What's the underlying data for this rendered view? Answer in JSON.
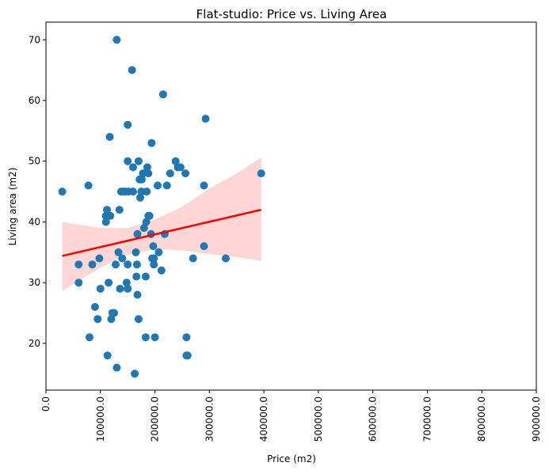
{
  "chart_data": {
    "type": "scatter",
    "title": "Flat-studio: Price vs. Living Area",
    "xlabel": "Price (m2)",
    "ylabel": "Living area (m2)",
    "xlim": [
      0,
      900000
    ],
    "ylim": [
      12.3,
      72.9
    ],
    "xticks": [
      0,
      100000,
      200000,
      300000,
      400000,
      500000,
      600000,
      700000,
      800000,
      900000
    ],
    "xtick_labels": [
      "0.0",
      "100000.0",
      "200000.0",
      "300000.0",
      "400000.0",
      "500000.0",
      "600000.0",
      "700000.0",
      "800000.0",
      "900000.0"
    ],
    "yticks": [
      20,
      30,
      40,
      50,
      60,
      70
    ],
    "ytick_labels": [
      "20",
      "30",
      "40",
      "50",
      "60",
      "70"
    ],
    "grid": false,
    "point_color": "#1f77b4",
    "line_color": "#ff0000",
    "band_color": "#ffcccc",
    "points": [
      [
        30000,
        45
      ],
      [
        60000,
        33
      ],
      [
        60000,
        30
      ],
      [
        78000,
        46
      ],
      [
        80000,
        21
      ],
      [
        85000,
        33
      ],
      [
        90000,
        26
      ],
      [
        95000,
        24
      ],
      [
        98000,
        34
      ],
      [
        100000,
        29
      ],
      [
        110000,
        40
      ],
      [
        110000,
        41
      ],
      [
        112000,
        42
      ],
      [
        113000,
        18
      ],
      [
        115000,
        30
      ],
      [
        117000,
        54
      ],
      [
        118000,
        41
      ],
      [
        120000,
        24
      ],
      [
        122000,
        25
      ],
      [
        125000,
        25
      ],
      [
        128000,
        33
      ],
      [
        130000,
        16
      ],
      [
        130000,
        70
      ],
      [
        133000,
        35
      ],
      [
        135000,
        42
      ],
      [
        136000,
        29
      ],
      [
        138000,
        45
      ],
      [
        140000,
        34
      ],
      [
        143000,
        45
      ],
      [
        147000,
        45
      ],
      [
        148000,
        30
      ],
      [
        150000,
        29
      ],
      [
        150000,
        50
      ],
      [
        150000,
        56
      ],
      [
        150000,
        33
      ],
      [
        152000,
        45
      ],
      [
        158000,
        65
      ],
      [
        160000,
        49
      ],
      [
        160000,
        45
      ],
      [
        163000,
        15
      ],
      [
        165000,
        35
      ],
      [
        166000,
        31
      ],
      [
        167000,
        33
      ],
      [
        168000,
        28
      ],
      [
        168000,
        38
      ],
      [
        170000,
        24
      ],
      [
        170000,
        50
      ],
      [
        172000,
        47
      ],
      [
        173000,
        44
      ],
      [
        175000,
        45
      ],
      [
        176000,
        47
      ],
      [
        178000,
        48
      ],
      [
        180000,
        39
      ],
      [
        183000,
        31
      ],
      [
        183000,
        21
      ],
      [
        184000,
        40
      ],
      [
        185000,
        45
      ],
      [
        186000,
        49
      ],
      [
        188000,
        48
      ],
      [
        188000,
        41
      ],
      [
        190000,
        41
      ],
      [
        193000,
        38
      ],
      [
        194000,
        53
      ],
      [
        195000,
        34
      ],
      [
        197000,
        36
      ],
      [
        198000,
        33
      ],
      [
        198000,
        34
      ],
      [
        200000,
        21
      ],
      [
        205000,
        46
      ],
      [
        207000,
        35
      ],
      [
        212000,
        32
      ],
      [
        215000,
        61
      ],
      [
        218000,
        38
      ],
      [
        222000,
        46
      ],
      [
        228000,
        48
      ],
      [
        238000,
        50
      ],
      [
        242000,
        49
      ],
      [
        247000,
        49
      ],
      [
        256000,
        48
      ],
      [
        258000,
        21
      ],
      [
        258000,
        18
      ],
      [
        260000,
        18
      ],
      [
        270000,
        34
      ],
      [
        290000,
        46
      ],
      [
        290000,
        36
      ],
      [
        293000,
        57
      ],
      [
        330000,
        34
      ],
      [
        395000,
        48
      ]
    ],
    "regression": {
      "x": [
        30000,
        395000
      ],
      "y": [
        34.4,
        42.0
      ]
    },
    "confidence_band": {
      "x": [
        30000,
        100000,
        150000,
        200000,
        250000,
        300000,
        350000,
        395000
      ],
      "lower": [
        28.6,
        32.5,
        34.6,
        35.5,
        35.3,
        34.7,
        34.2,
        33.6
      ],
      "upper": [
        40.0,
        39.0,
        39.0,
        40.4,
        42.5,
        45.5,
        48.0,
        50.6
      ]
    }
  }
}
